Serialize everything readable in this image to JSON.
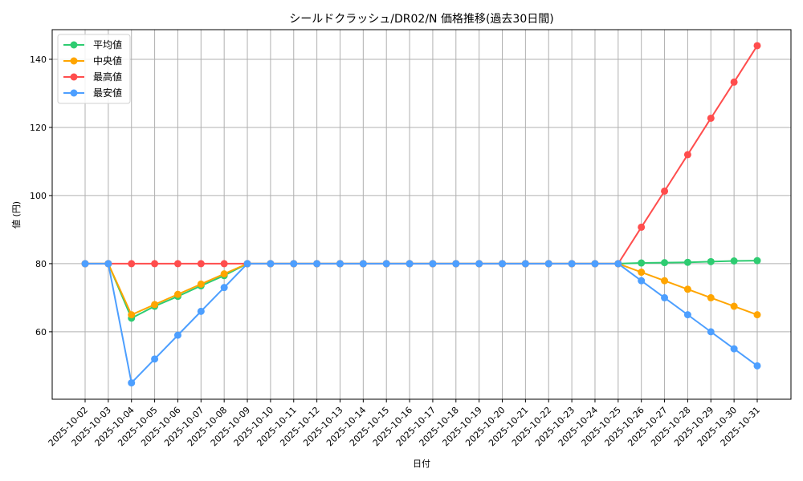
{
  "chart_data": {
    "type": "line",
    "title": "シールドクラッシュ/DR02/N 価格推移(過去30日間)",
    "xlabel": "日付",
    "ylabel": "値 (円)",
    "ylim": [
      40.2,
      148.7
    ],
    "yticks": [
      60,
      80,
      100,
      120,
      140
    ],
    "grid": true,
    "legend_position": "upper left",
    "categories": [
      "2025-10-02",
      "2025-10-03",
      "2025-10-04",
      "2025-10-05",
      "2025-10-06",
      "2025-10-07",
      "2025-10-08",
      "2025-10-09",
      "2025-10-10",
      "2025-10-11",
      "2025-10-12",
      "2025-10-13",
      "2025-10-14",
      "2025-10-15",
      "2025-10-16",
      "2025-10-17",
      "2025-10-18",
      "2025-10-19",
      "2025-10-20",
      "2025-10-21",
      "2025-10-22",
      "2025-10-23",
      "2025-10-24",
      "2025-10-25",
      "2025-10-26",
      "2025-10-27",
      "2025-10-28",
      "2025-10-29",
      "2025-10-30",
      "2025-10-31"
    ],
    "series": [
      {
        "name": "平均値",
        "color": "#2ecc71",
        "values": [
          80,
          80,
          64.0,
          67.5,
          70.4,
          73.5,
          76.5,
          80,
          80,
          80,
          80,
          80,
          80,
          80,
          80,
          80,
          80,
          80,
          80,
          80,
          80,
          80,
          80,
          80,
          80.2,
          80.3,
          80.4,
          80.6,
          80.8,
          80.9
        ]
      },
      {
        "name": "中央値",
        "color": "#ffa500",
        "values": [
          80,
          80,
          65.0,
          68.0,
          71.0,
          74.0,
          77.0,
          80,
          80,
          80,
          80,
          80,
          80,
          80,
          80,
          80,
          80,
          80,
          80,
          80,
          80,
          80,
          80,
          80,
          77.5,
          75.0,
          72.5,
          70.0,
          67.5,
          65.0
        ]
      },
      {
        "name": "最高値",
        "color": "#ff4d4d",
        "values": [
          80,
          80,
          80,
          80,
          80,
          80,
          80,
          80,
          80,
          80,
          80,
          80,
          80,
          80,
          80,
          80,
          80,
          80,
          80,
          80,
          80,
          80,
          80,
          80,
          90.7,
          101.3,
          112.0,
          122.7,
          133.3,
          144.0
        ]
      },
      {
        "name": "最安値",
        "color": "#4d9fff",
        "values": [
          80,
          80,
          45.0,
          52.0,
          59.0,
          66.0,
          73.0,
          80,
          80,
          80,
          80,
          80,
          80,
          80,
          80,
          80,
          80,
          80,
          80,
          80,
          80,
          80,
          80,
          80,
          75.0,
          70.0,
          65.0,
          60.0,
          55.0,
          50.0
        ]
      }
    ]
  }
}
